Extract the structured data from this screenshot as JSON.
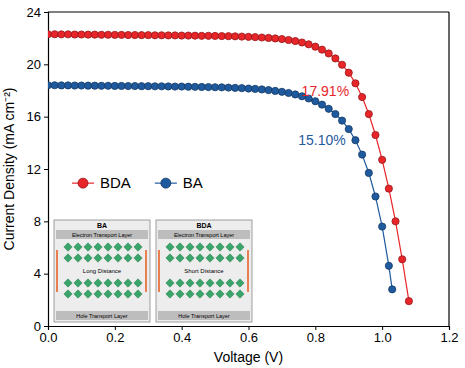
{
  "chart_data": {
    "type": "line",
    "x_label": "Voltage (V)",
    "y_label": "Current Density (mA cm⁻²)",
    "xlim": [
      0,
      1.2
    ],
    "ylim": [
      0,
      24
    ],
    "xticks": [
      {
        "value": 0,
        "label": "0.0"
      },
      0.2,
      0.4,
      0.6,
      0.8,
      {
        "value": 1,
        "label": "1.0"
      },
      1.2
    ],
    "yticks": [
      0,
      4,
      8,
      12,
      16,
      20,
      24
    ],
    "grid": false,
    "legend": "left",
    "marker": "circle",
    "series": [
      {
        "name": "BDA",
        "color": "#e8262a",
        "x": [
          0,
          0.02,
          0.04,
          0.06,
          0.08,
          0.1,
          0.12,
          0.14,
          0.16,
          0.18,
          0.2,
          0.22,
          0.24,
          0.26,
          0.28,
          0.3,
          0.32,
          0.34,
          0.36,
          0.38,
          0.4,
          0.42,
          0.44,
          0.46,
          0.48,
          0.5,
          0.52,
          0.54,
          0.56,
          0.58,
          0.6,
          0.62,
          0.64,
          0.66,
          0.68,
          0.7,
          0.72,
          0.74,
          0.76,
          0.78,
          0.8,
          0.82,
          0.84,
          0.86,
          0.88,
          0.9,
          0.92,
          0.94,
          0.96,
          0.98,
          1,
          1.02,
          1.04,
          1.06,
          1.08
        ],
        "values": [
          22.3,
          22.3,
          22.29,
          22.29,
          22.28,
          22.28,
          22.27,
          22.27,
          22.26,
          22.26,
          22.25,
          22.25,
          22.24,
          22.24,
          22.23,
          22.23,
          22.22,
          22.22,
          22.21,
          22.21,
          22.2,
          22.2,
          22.19,
          22.18,
          22.18,
          22.17,
          22.16,
          22.15,
          22.14,
          22.12,
          22.1,
          22.08,
          22.05,
          22.02,
          21.98,
          21.93,
          21.86,
          21.78,
          21.67,
          21.53,
          21.35,
          21.12,
          20.83,
          20.45,
          19.97,
          19.36,
          18.55,
          17.5,
          16.2,
          14.6,
          12.7,
          10.5,
          8.0,
          5.1,
          1.9
        ]
      },
      {
        "name": "BA",
        "color": "#1f5a9e",
        "x": [
          0,
          0.02,
          0.04,
          0.06,
          0.08,
          0.1,
          0.12,
          0.14,
          0.16,
          0.18,
          0.2,
          0.22,
          0.24,
          0.26,
          0.28,
          0.3,
          0.32,
          0.34,
          0.36,
          0.38,
          0.4,
          0.42,
          0.44,
          0.46,
          0.48,
          0.5,
          0.52,
          0.54,
          0.56,
          0.58,
          0.6,
          0.62,
          0.64,
          0.66,
          0.68,
          0.7,
          0.72,
          0.74,
          0.76,
          0.78,
          0.8,
          0.82,
          0.84,
          0.86,
          0.88,
          0.9,
          0.92,
          0.94,
          0.96,
          0.98,
          1,
          1.02,
          1.03
        ],
        "values": [
          18.4,
          18.4,
          18.39,
          18.39,
          18.38,
          18.38,
          18.37,
          18.37,
          18.36,
          18.36,
          18.35,
          18.35,
          18.34,
          18.34,
          18.33,
          18.33,
          18.32,
          18.32,
          18.31,
          18.3,
          18.3,
          18.29,
          18.28,
          18.27,
          18.26,
          18.25,
          18.24,
          18.22,
          18.2,
          18.18,
          18.15,
          18.12,
          18.08,
          18.03,
          17.97,
          17.9,
          17.81,
          17.7,
          17.56,
          17.39,
          17.18,
          16.92,
          16.6,
          16.2,
          15.7,
          15.05,
          14.2,
          13.1,
          11.7,
          9.9,
          7.6,
          4.6,
          2.8
        ]
      }
    ],
    "annotations": [
      {
        "text": "17.91%",
        "x": 0.83,
        "y": 17.6,
        "color": "#e8262a"
      },
      {
        "text": "15.10%",
        "x": 0.82,
        "y": 13.8,
        "color": "#1f5a9e"
      }
    ],
    "inset": {
      "panels": [
        {
          "title": "BA",
          "top_layer": "Electron Transport Layer",
          "bottom_layer": "Hole Transport Layer",
          "distance": "Long Distance"
        },
        {
          "title": "BDA",
          "top_layer": "Electron Transport Layer",
          "bottom_layer": "Hole Transport Layer",
          "distance": "Short Distance"
        }
      ]
    }
  }
}
